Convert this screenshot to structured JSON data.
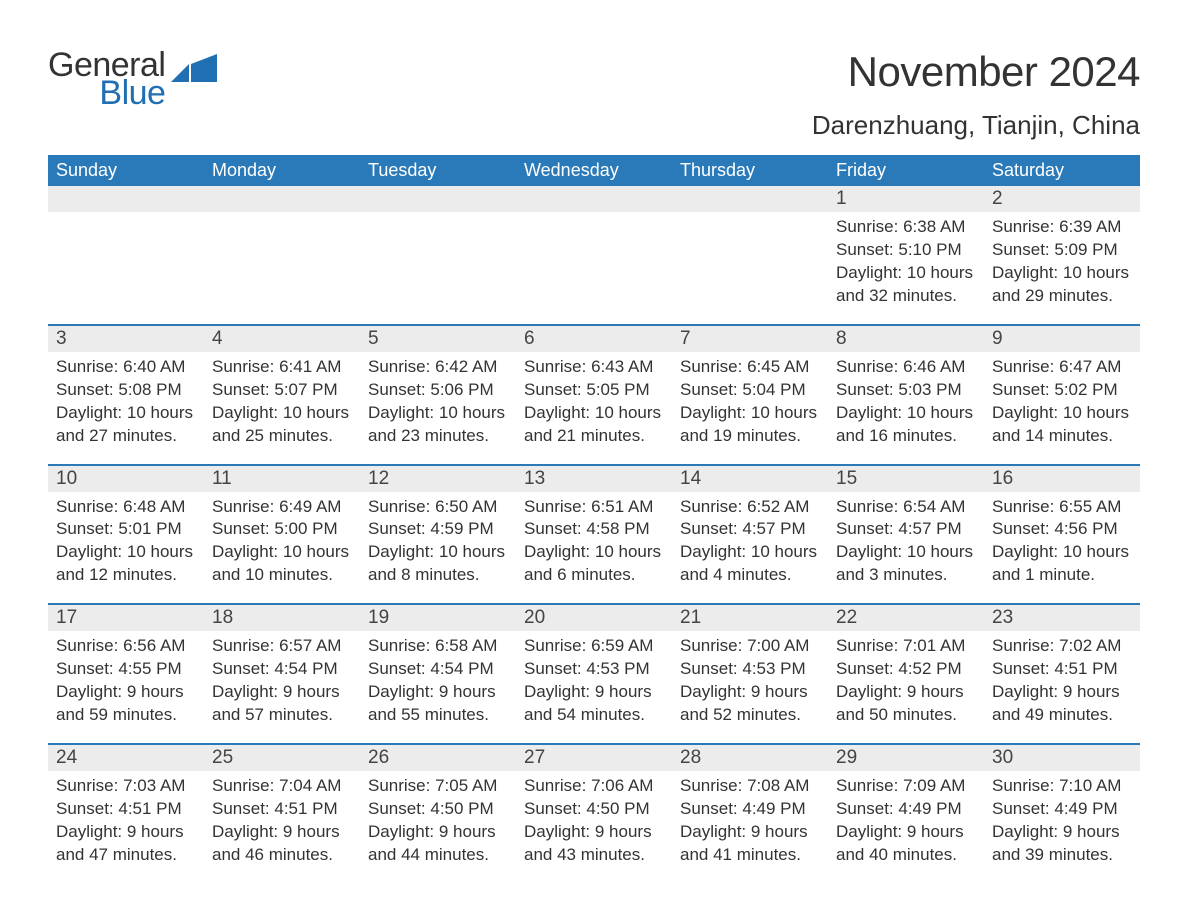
{
  "brand": {
    "line1": "General",
    "line2": "Blue",
    "color_text": "#333333",
    "color_blue": "#1f6fb2"
  },
  "title": "November 2024",
  "location": "Darenzhuang, Tianjin, China",
  "header_bg": "#2a7ab9",
  "header_text_color": "#ffffff",
  "row_stripe_bg": "#ececec",
  "row_border_color": "#2a7ab9",
  "body_text_color": "#333333",
  "title_fontsize": 42,
  "location_fontsize": 26,
  "header_fontsize": 18,
  "cell_fontsize": 17,
  "days": [
    "Sunday",
    "Monday",
    "Tuesday",
    "Wednesday",
    "Thursday",
    "Friday",
    "Saturday"
  ],
  "weeks": [
    [
      null,
      null,
      null,
      null,
      null,
      {
        "n": "1",
        "sunrise": "6:38 AM",
        "sunset": "5:10 PM",
        "dl1": "10 hours",
        "dl2": "and 32 minutes."
      },
      {
        "n": "2",
        "sunrise": "6:39 AM",
        "sunset": "5:09 PM",
        "dl1": "10 hours",
        "dl2": "and 29 minutes."
      }
    ],
    [
      {
        "n": "3",
        "sunrise": "6:40 AM",
        "sunset": "5:08 PM",
        "dl1": "10 hours",
        "dl2": "and 27 minutes."
      },
      {
        "n": "4",
        "sunrise": "6:41 AM",
        "sunset": "5:07 PM",
        "dl1": "10 hours",
        "dl2": "and 25 minutes."
      },
      {
        "n": "5",
        "sunrise": "6:42 AM",
        "sunset": "5:06 PM",
        "dl1": "10 hours",
        "dl2": "and 23 minutes."
      },
      {
        "n": "6",
        "sunrise": "6:43 AM",
        "sunset": "5:05 PM",
        "dl1": "10 hours",
        "dl2": "and 21 minutes."
      },
      {
        "n": "7",
        "sunrise": "6:45 AM",
        "sunset": "5:04 PM",
        "dl1": "10 hours",
        "dl2": "and 19 minutes."
      },
      {
        "n": "8",
        "sunrise": "6:46 AM",
        "sunset": "5:03 PM",
        "dl1": "10 hours",
        "dl2": "and 16 minutes."
      },
      {
        "n": "9",
        "sunrise": "6:47 AM",
        "sunset": "5:02 PM",
        "dl1": "10 hours",
        "dl2": "and 14 minutes."
      }
    ],
    [
      {
        "n": "10",
        "sunrise": "6:48 AM",
        "sunset": "5:01 PM",
        "dl1": "10 hours",
        "dl2": "and 12 minutes."
      },
      {
        "n": "11",
        "sunrise": "6:49 AM",
        "sunset": "5:00 PM",
        "dl1": "10 hours",
        "dl2": "and 10 minutes."
      },
      {
        "n": "12",
        "sunrise": "6:50 AM",
        "sunset": "4:59 PM",
        "dl1": "10 hours",
        "dl2": "and 8 minutes."
      },
      {
        "n": "13",
        "sunrise": "6:51 AM",
        "sunset": "4:58 PM",
        "dl1": "10 hours",
        "dl2": "and 6 minutes."
      },
      {
        "n": "14",
        "sunrise": "6:52 AM",
        "sunset": "4:57 PM",
        "dl1": "10 hours",
        "dl2": "and 4 minutes."
      },
      {
        "n": "15",
        "sunrise": "6:54 AM",
        "sunset": "4:57 PM",
        "dl1": "10 hours",
        "dl2": "and 3 minutes."
      },
      {
        "n": "16",
        "sunrise": "6:55 AM",
        "sunset": "4:56 PM",
        "dl1": "10 hours",
        "dl2": "and 1 minute."
      }
    ],
    [
      {
        "n": "17",
        "sunrise": "6:56 AM",
        "sunset": "4:55 PM",
        "dl1": "9 hours",
        "dl2": "and 59 minutes."
      },
      {
        "n": "18",
        "sunrise": "6:57 AM",
        "sunset": "4:54 PM",
        "dl1": "9 hours",
        "dl2": "and 57 minutes."
      },
      {
        "n": "19",
        "sunrise": "6:58 AM",
        "sunset": "4:54 PM",
        "dl1": "9 hours",
        "dl2": "and 55 minutes."
      },
      {
        "n": "20",
        "sunrise": "6:59 AM",
        "sunset": "4:53 PM",
        "dl1": "9 hours",
        "dl2": "and 54 minutes."
      },
      {
        "n": "21",
        "sunrise": "7:00 AM",
        "sunset": "4:53 PM",
        "dl1": "9 hours",
        "dl2": "and 52 minutes."
      },
      {
        "n": "22",
        "sunrise": "7:01 AM",
        "sunset": "4:52 PM",
        "dl1": "9 hours",
        "dl2": "and 50 minutes."
      },
      {
        "n": "23",
        "sunrise": "7:02 AM",
        "sunset": "4:51 PM",
        "dl1": "9 hours",
        "dl2": "and 49 minutes."
      }
    ],
    [
      {
        "n": "24",
        "sunrise": "7:03 AM",
        "sunset": "4:51 PM",
        "dl1": "9 hours",
        "dl2": "and 47 minutes."
      },
      {
        "n": "25",
        "sunrise": "7:04 AM",
        "sunset": "4:51 PM",
        "dl1": "9 hours",
        "dl2": "and 46 minutes."
      },
      {
        "n": "26",
        "sunrise": "7:05 AM",
        "sunset": "4:50 PM",
        "dl1": "9 hours",
        "dl2": "and 44 minutes."
      },
      {
        "n": "27",
        "sunrise": "7:06 AM",
        "sunset": "4:50 PM",
        "dl1": "9 hours",
        "dl2": "and 43 minutes."
      },
      {
        "n": "28",
        "sunrise": "7:08 AM",
        "sunset": "4:49 PM",
        "dl1": "9 hours",
        "dl2": "and 41 minutes."
      },
      {
        "n": "29",
        "sunrise": "7:09 AM",
        "sunset": "4:49 PM",
        "dl1": "9 hours",
        "dl2": "and 40 minutes."
      },
      {
        "n": "30",
        "sunrise": "7:10 AM",
        "sunset": "4:49 PM",
        "dl1": "9 hours",
        "dl2": "and 39 minutes."
      }
    ]
  ],
  "labels": {
    "sunrise": "Sunrise: ",
    "sunset": "Sunset: ",
    "daylight": "Daylight: "
  }
}
